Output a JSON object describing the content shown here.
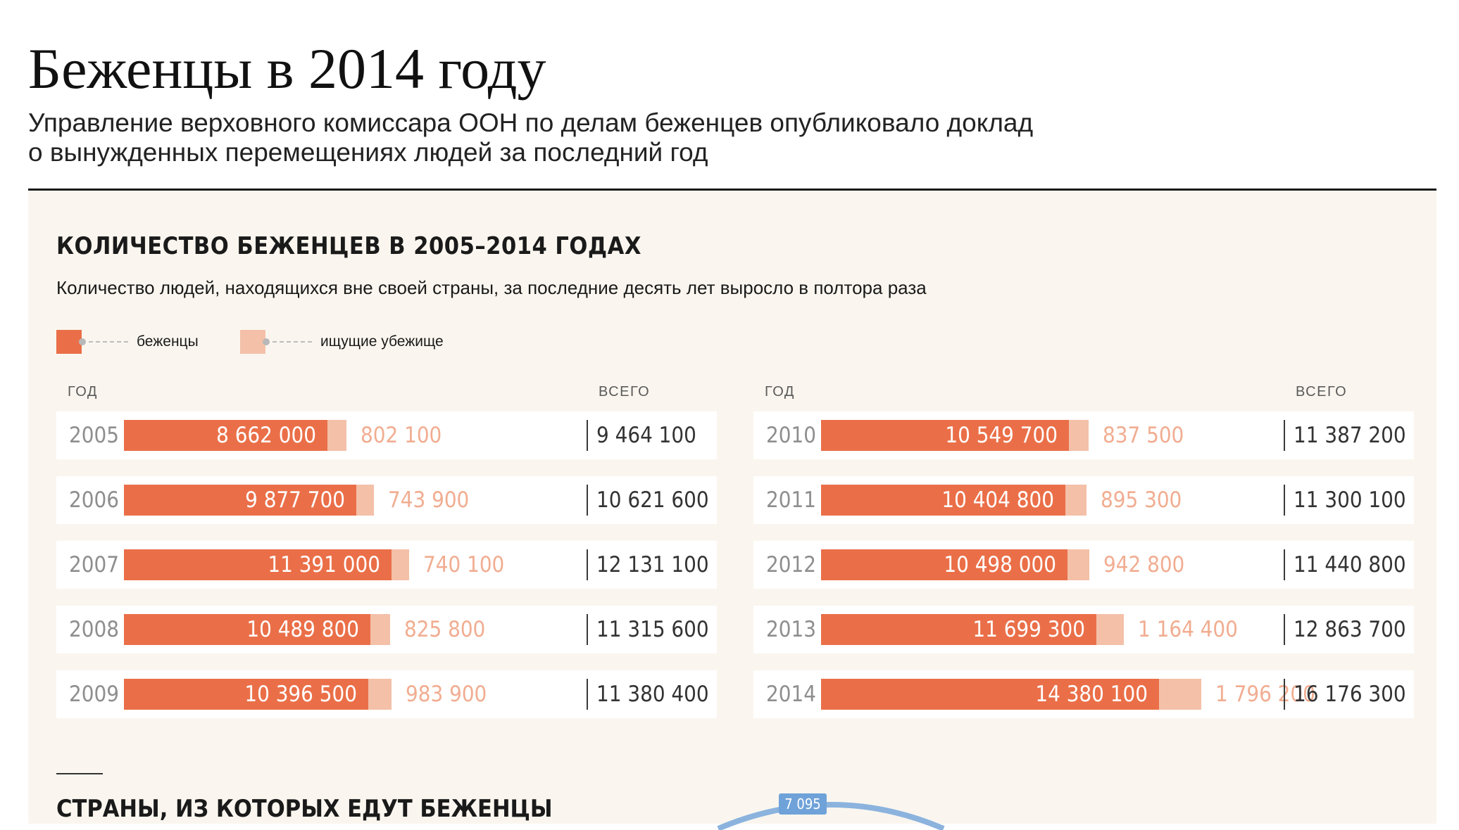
{
  "header": {
    "title": "Беженцы в 2014 году",
    "subtitle_line1": "Управление верховного комиссара ООН по делам беженцев опубликовало доклад",
    "subtitle_line2": "о вынужденных перемещениях людей за последний год"
  },
  "section1": {
    "title": "КОЛИЧЕСТВО БЕЖЕНЦЕВ В 2005–2014 ГОДАХ",
    "subtitle": "Количество людей, находящихся вне своей страны, за последние десять лет выросло в полтора раза",
    "legend": [
      {
        "label": "беженцы",
        "color": "#ea6f48"
      },
      {
        "label": "ищущие убежище",
        "color": "#f4c0a8"
      }
    ],
    "col_year": "ГОД",
    "col_total": "ВСЕГО"
  },
  "chart_data": {
    "type": "bar",
    "stacked": true,
    "orientation": "horizontal",
    "categories": [
      "2005",
      "2006",
      "2007",
      "2008",
      "2009",
      "2010",
      "2011",
      "2012",
      "2013",
      "2014"
    ],
    "series": [
      {
        "name": "беженцы",
        "color": "#ea6f48",
        "values": [
          8662000,
          9877700,
          11391000,
          10489800,
          10396500,
          10549700,
          10404800,
          10498000,
          11699300,
          14380100
        ],
        "labels": [
          "8 662 000",
          "9 877 700",
          "11 391 000",
          "10 489 800",
          "10 396 500",
          "10 549 700",
          "10 404 800",
          "10 498 000",
          "11 699 300",
          "14 380 100"
        ]
      },
      {
        "name": "ищущие убежище",
        "color": "#f4c0a8",
        "values": [
          802100,
          743900,
          740100,
          825800,
          983900,
          837500,
          895300,
          942800,
          1164400,
          1796200
        ],
        "labels": [
          "802 100",
          "743 900",
          "740 100",
          "825 800",
          "983 900",
          "837 500",
          "895 300",
          "942 800",
          "1 164 400",
          "1 796 200"
        ]
      }
    ],
    "totals": [
      "9 464 100",
      "10 621 600",
      "12 131 100",
      "11 315 600",
      "11 380 400",
      "11 387 200",
      "11 300 100",
      "11 440 800",
      "12 863 700",
      "16 176 300"
    ]
  },
  "section2": {
    "title": "СТРАНЫ, ИЗ КОТОРЫХ ЕДУТ БЕЖЕНЦЫ",
    "badge": "7 095"
  }
}
